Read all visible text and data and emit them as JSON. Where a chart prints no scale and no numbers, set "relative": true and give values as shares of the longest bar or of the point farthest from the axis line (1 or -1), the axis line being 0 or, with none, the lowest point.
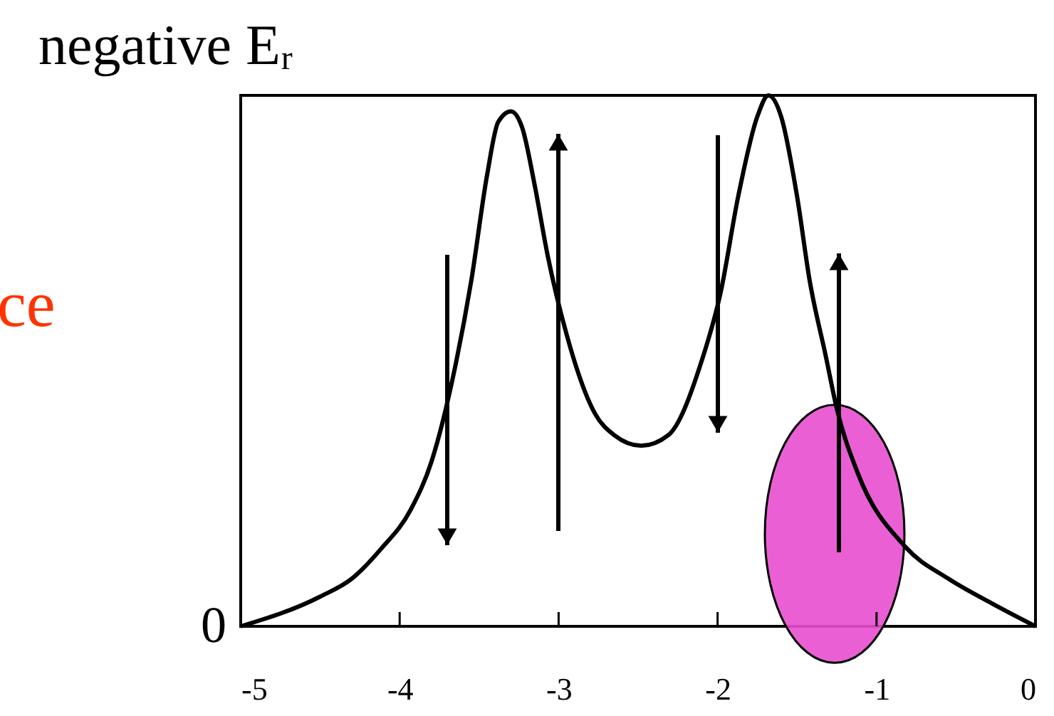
{
  "chart_data": {
    "type": "line",
    "title": "negative Eᵣ",
    "relative": true,
    "x": [
      -5,
      -4.5,
      -4.3,
      -4.12,
      -3.93,
      -3.8,
      -3.65,
      -3.55,
      -3.45,
      -3.38,
      -3.3,
      -3.23,
      -3.15,
      -3.07,
      -2.95,
      -2.77,
      -2.65,
      -2.48,
      -2.31,
      -2.1,
      -1.98,
      -1.87,
      -1.75,
      -1.68,
      -1.6,
      -1.5,
      -1.42,
      -1.32,
      -1.25,
      -1.12,
      -0.82,
      -0.55,
      -0.28,
      0
    ],
    "series": [
      {
        "color": "#000000",
        "values": [
          0,
          0.056,
          0.09,
          0.145,
          0.22,
          0.31,
          0.49,
          0.65,
          0.85,
          0.95,
          0.97,
          0.94,
          0.83,
          0.7,
          0.55,
          0.4,
          0.36,
          0.34,
          0.36,
          0.5,
          0.63,
          0.81,
          0.96,
          1,
          0.96,
          0.81,
          0.65,
          0.51,
          0.41,
          0.29,
          0.15,
          0.09,
          0.044,
          0
        ]
      }
    ],
    "xlim": [
      -5,
      0
    ],
    "xticks": [
      -5,
      -4,
      -3,
      -2,
      -1,
      0
    ],
    "annotations": [
      "0",
      "ce"
    ]
  }
}
